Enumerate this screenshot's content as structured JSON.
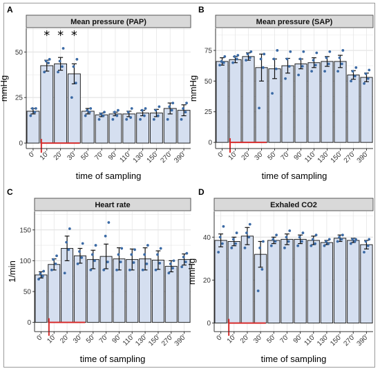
{
  "colors": {
    "bar_fill": "#d5dff0",
    "bar_stroke": "#222222",
    "point": "#3b6aa5",
    "marker_red": "#d62b2b",
    "strip_fill": "#d9d9d9",
    "strip_stroke": "#555555"
  },
  "chart_data": [
    {
      "panel": "A",
      "type": "bar",
      "title": "Mean pressure (PAP)",
      "xlabel": "time of sampling",
      "ylabel": "mmHg",
      "categories": [
        "0'",
        "10'",
        "20'",
        "30'",
        "50'",
        "70'",
        "90'",
        "110'",
        "130'",
        "150'",
        "270'",
        "390'"
      ],
      "values": [
        17.5,
        42.5,
        43.5,
        38,
        17.5,
        15.5,
        16,
        16,
        16.5,
        16.5,
        19,
        18
      ],
      "errors": [
        1.5,
        3,
        3.5,
        5.5,
        1.5,
        1,
        1,
        1.5,
        1.5,
        2,
        3,
        3
      ],
      "points": [
        [
          15,
          17,
          19,
          19
        ],
        [
          39,
          44,
          45,
          46
        ],
        [
          39,
          42,
          45,
          52
        ],
        [
          25,
          33,
          42,
          46
        ],
        [
          15,
          17,
          18,
          19
        ],
        [
          13,
          15,
          16,
          17
        ],
        [
          13,
          15,
          17,
          18
        ],
        [
          13,
          14,
          17,
          19
        ],
        [
          13,
          15,
          18,
          19
        ],
        [
          13,
          15,
          18,
          20
        ],
        [
          13,
          18,
          20,
          22
        ],
        [
          13,
          17,
          19,
          22
        ]
      ],
      "significance": [
        "",
        "*",
        "*",
        "*",
        "",
        "",
        "",
        "",
        "",
        "",
        "",
        ""
      ],
      "yticks": [
        0,
        25,
        50
      ],
      "ylim": [
        -3,
        63
      ],
      "grid": true,
      "arrow_at": "10'",
      "red_line_span": [
        "10'",
        "30'"
      ]
    },
    {
      "panel": "B",
      "type": "bar",
      "title": "Mean pressure (SAP)",
      "xlabel": "time of sampling",
      "ylabel": "mmHg",
      "categories": [
        "0'",
        "10'",
        "20'",
        "30'",
        "50'",
        "70'",
        "90'",
        "110'",
        "130'",
        "150'",
        "270'",
        "390'"
      ],
      "values": [
        66,
        67.5,
        70,
        61,
        60,
        62.5,
        64,
        65,
        66,
        66,
        55,
        53
      ],
      "errors": [
        3,
        2.5,
        3,
        11,
        8,
        6,
        4,
        4,
        4,
        5,
        3.5,
        3.5
      ],
      "points": [
        [
          63,
          65,
          66,
          70
        ],
        [
          65,
          68,
          70,
          71
        ],
        [
          67,
          69,
          72,
          74
        ],
        [
          28,
          61,
          68,
          72
        ],
        [
          40,
          60,
          68,
          75
        ],
        [
          52,
          62,
          68,
          74
        ],
        [
          55,
          62,
          68,
          74
        ],
        [
          58,
          63,
          67,
          73
        ],
        [
          58,
          64,
          69,
          74
        ],
        [
          58,
          64,
          69,
          75
        ],
        [
          50,
          54,
          58,
          61
        ],
        [
          48,
          52,
          56,
          59
        ]
      ],
      "significance": [
        "",
        "",
        "",
        "",
        "",
        "",
        "",
        "",
        "",
        "",
        "",
        ""
      ],
      "yticks": [
        0,
        25,
        50,
        75
      ],
      "ylim": [
        -5,
        93
      ],
      "grid": true,
      "arrow_at": "10'",
      "red_line_span": [
        "10'",
        "30'"
      ]
    },
    {
      "panel": "C",
      "type": "bar",
      "title": "Heart rate",
      "xlabel": "time of sampling",
      "ylabel": "1/min",
      "categories": [
        "0'",
        "10'",
        "20'",
        "30'",
        "50'",
        "70'",
        "90'",
        "110'",
        "130'",
        "150'",
        "270'",
        "390'"
      ],
      "values": [
        77,
        94,
        120,
        108,
        102,
        107,
        103,
        102,
        103,
        101,
        91,
        102
      ],
      "errors": [
        5,
        9,
        20,
        12,
        15,
        20,
        18,
        17,
        18,
        15,
        9,
        9
      ],
      "points": [
        [
          70,
          75,
          79,
          83
        ],
        [
          85,
          95,
          102,
          108
        ],
        [
          80,
          118,
          130,
          152
        ],
        [
          95,
          105,
          115,
          128
        ],
        [
          85,
          100,
          110,
          125
        ],
        [
          85,
          98,
          140,
          162
        ],
        [
          85,
          98,
          110,
          120
        ],
        [
          85,
          97,
          110,
          118
        ],
        [
          85,
          95,
          110,
          125
        ],
        [
          85,
          96,
          110,
          120
        ],
        [
          80,
          88,
          95,
          100
        ],
        [
          90,
          98,
          106,
          112
        ]
      ],
      "significance": [
        "",
        "",
        "",
        "",
        "",
        "",
        "",
        "",
        "",
        "",
        "",
        ""
      ],
      "yticks": [
        0,
        50,
        100,
        150
      ],
      "ylim": [
        -15,
        180
      ],
      "grid": true,
      "arrow_at": "10'",
      "red_line_span": [
        "10'",
        "30'"
      ]
    },
    {
      "panel": "D",
      "type": "bar",
      "title": "Exhaled CO2",
      "xlabel": "time of sampling",
      "ylabel": "mmHg",
      "categories": [
        "0'",
        "10'",
        "20'",
        "30'",
        "50'",
        "70'",
        "90'",
        "110'",
        "130'",
        "150'",
        "270'",
        "390'"
      ],
      "values": [
        38.5,
        38,
        40.5,
        32,
        38.5,
        39,
        39,
        38.5,
        37.5,
        39.5,
        38.5,
        36.5
      ],
      "errors": [
        3,
        2,
        4,
        6,
        1.5,
        2.5,
        2,
        2,
        1,
        1.5,
        1,
        2
      ],
      "points": [
        [
          33,
          37,
          40,
          45
        ],
        [
          35,
          37,
          39,
          42
        ],
        [
          35,
          40,
          42,
          46
        ],
        [
          15,
          25,
          35,
          38
        ],
        [
          36,
          38,
          39,
          41
        ],
        [
          35,
          38,
          40,
          43
        ],
        [
          36,
          38,
          40,
          42
        ],
        [
          36,
          37,
          39,
          41
        ],
        [
          36,
          37,
          38,
          39
        ],
        [
          38,
          39,
          40,
          41
        ],
        [
          37,
          38,
          39,
          39
        ],
        [
          33,
          36,
          38,
          39
        ]
      ],
      "significance": [
        "",
        "",
        "",
        "",
        "",
        "",
        "",
        "",
        "",
        "",
        "",
        ""
      ],
      "yticks": [
        0,
        20,
        40
      ],
      "ylim": [
        -4,
        52
      ],
      "grid": true,
      "arrow_at": "10'",
      "red_line_span": [
        "10'",
        "30'"
      ]
    }
  ]
}
